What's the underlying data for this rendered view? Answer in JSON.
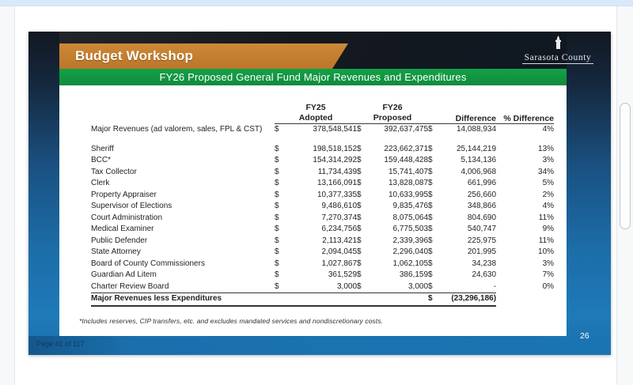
{
  "page": {
    "title_banner": "Budget Workshop",
    "logo": "Sarasota County",
    "slide_title": "FY26 Proposed General Fund Major Revenues and Expenditures",
    "footnote": "*Includes reserves, CIP transfers, etc. and excludes mandated services and nondiscretionary costs.",
    "footer_page_label": "Page 41 of 117",
    "slide_number": "26"
  },
  "table": {
    "currency": "$",
    "headers": {
      "fy25_line1": "FY25",
      "fy25_line2": "Adopted",
      "fy26_line1": "FY26",
      "fy26_line2": "Proposed",
      "difference": "Difference",
      "pct_difference": "% Difference"
    },
    "rows": [
      {
        "label": "Major Revenues (ad valorem, sales, FPL & CST)",
        "fy25": "378,548,541",
        "fy26": "392,637,475",
        "diff": "14,088,934",
        "pct": "4%"
      },
      {
        "label": "Sheriff",
        "fy25": "198,518,152",
        "fy26": "223,662,371",
        "diff": "25,144,219",
        "pct": "13%"
      },
      {
        "label": "BCC*",
        "fy25": "154,314,292",
        "fy26": "159,448,428",
        "diff": "5,134,136",
        "pct": "3%"
      },
      {
        "label": "Tax Collector",
        "fy25": "11,734,439",
        "fy26": "15,741,407",
        "diff": "4,006,968",
        "pct": "34%"
      },
      {
        "label": "Clerk",
        "fy25": "13,166,091",
        "fy26": "13,828,087",
        "diff": "661,996",
        "pct": "5%"
      },
      {
        "label": "Property Appraiser",
        "fy25": "10,377,335",
        "fy26": "10,633,995",
        "diff": "256,660",
        "pct": "2%"
      },
      {
        "label": "Supervisor of Elections",
        "fy25": "9,486,610",
        "fy26": "9,835,476",
        "diff": "348,866",
        "pct": "4%"
      },
      {
        "label": "Court Administration",
        "fy25": "7,270,374",
        "fy26": "8,075,064",
        "diff": "804,690",
        "pct": "11%"
      },
      {
        "label": "Medical Examiner",
        "fy25": "6,234,756",
        "fy26": "6,775,503",
        "diff": "540,747",
        "pct": "9%"
      },
      {
        "label": "Public Defender",
        "fy25": "2,113,421",
        "fy26": "2,339,396",
        "diff": "225,975",
        "pct": "11%"
      },
      {
        "label": "State Attorney",
        "fy25": "2,094,045",
        "fy26": "2,296,040",
        "diff": "201,995",
        "pct": "10%"
      },
      {
        "label": "Board of County Commissioners",
        "fy25": "1,027,867",
        "fy26": "1,062,105",
        "diff": "34,238",
        "pct": "3%"
      },
      {
        "label": "Guardian Ad Litem",
        "fy25": "361,529",
        "fy26": "386,159",
        "diff": "24,630",
        "pct": "7%"
      },
      {
        "label": "Charter Review Board",
        "fy25": "3,000",
        "fy26": "3,000",
        "diff": "-",
        "pct": "0%"
      }
    ],
    "total_row": {
      "label": "Major Revenues less Expenditures",
      "diff": "(23,296,186)"
    }
  },
  "colors": {
    "banner_orange": "#bd762a",
    "banner_green": "#0f8c3c",
    "band_blue": "#1b74b2",
    "band_dark": "#15191f",
    "chrome_strip": "#d9e9fa"
  }
}
